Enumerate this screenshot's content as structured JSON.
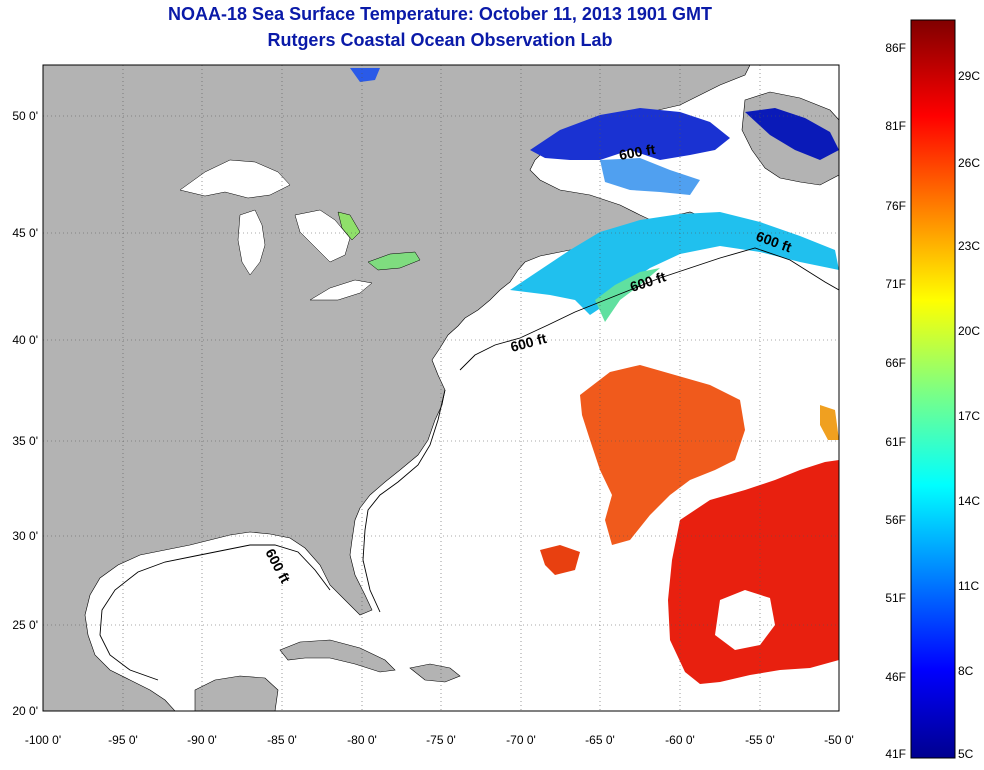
{
  "title": "NOAA-18 Sea Surface Temperature:  October 11, 2013 1901 GMT",
  "subtitle": "Rutgers Coastal Ocean Observation Lab",
  "axes": {
    "lon_labels": [
      "-100 0'",
      "-95 0'",
      "-90 0'",
      "-85 0'",
      "-80 0'",
      "-75 0'",
      "-70 0'",
      "-65 0'",
      "-60 0'",
      "-55 0'",
      "-50 0'"
    ],
    "lat_labels": [
      "50 0'",
      "45 0'",
      "40 0'",
      "35 0'",
      "30 0'",
      "25 0'",
      "20 0'"
    ]
  },
  "contour_label": "600 ft",
  "colorbar": {
    "fahrenheit": [
      "86F",
      "81F",
      "76F",
      "71F",
      "66F",
      "61F",
      "56F",
      "51F",
      "46F",
      "41F"
    ],
    "celsius": [
      "29C",
      "26C",
      "23C",
      "20C",
      "17C",
      "14C",
      "11C",
      "8C",
      "5C"
    ]
  },
  "colors": {
    "land": "#b3b3b3",
    "ocean": "#ffffff",
    "title": "#0a1aa8",
    "warm_sst": "#e8200f",
    "cold_sst": "#1830d0"
  }
}
